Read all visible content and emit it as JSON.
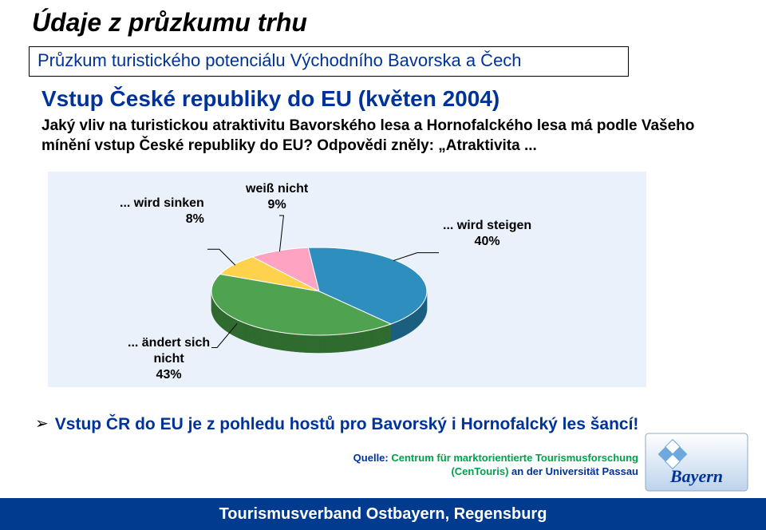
{
  "slide": {
    "title": "Údaje z průzkumu trhu",
    "subtitle": "Průzkum turistického potenciálu Východního Bavorska a Čech",
    "heading2": "Vstup České republiky do EU (květen 2004)",
    "question": "Jaký vliv na turistickou atraktivitu Bavorského lesa a Hornofalckého lesa má  podle Vašeho mínění vstup České republiky do EU? Odpovědi zněly: „Atraktivita ...",
    "conclusion": "Vstup ČR do EU je z pohledu hostů pro Bavorský i Hornofalcký les šancí!",
    "source_prefix": "Quelle: ",
    "source_main": "Centrum für marktorientierte Tourismusforschung ",
    "source_paren": "(CenTouris) ",
    "source_tail": "an der Universität Passau",
    "footer": "Tourismusverband Ostbayern, Regensburg",
    "logo_text": "Bayern"
  },
  "chart": {
    "type": "pie",
    "background_color": "#eaf1fa",
    "labels": {
      "sinken": "... wird sinken\n8%",
      "weiss": "weiß nicht\n9%",
      "steigen": "... wird steigen\n40%",
      "aendert": "... ändert sich\nnicht\n43%"
    },
    "label_fontsize": 16,
    "label_color": "#000000",
    "slices": [
      {
        "name": "wird sinken",
        "value": 8,
        "top_color": "#ffd24d",
        "side_color": "#d1a52a"
      },
      {
        "name": "weiss nicht",
        "value": 9,
        "top_color": "#ffa3c2",
        "side_color": "#c97892"
      },
      {
        "name": "wird steigen",
        "value": 40,
        "top_color": "#2e8fbf",
        "side_color": "#1b5e80"
      },
      {
        "name": "ändert sich nicht",
        "value": 43,
        "top_color": "#4fa24f",
        "side_color": "#2f6b2f"
      }
    ],
    "leader_line_color": "#000000",
    "leader_line_width": 1
  },
  "logo": {
    "bg_from": "#ffffff",
    "bg_to": "#bcd3ec",
    "border_color": "#8fa9c6",
    "text_color": "#003399",
    "lozenge_colors": [
      "#ffffff",
      "#6fa8dc"
    ]
  },
  "footer_bar_color": "#003b8f"
}
